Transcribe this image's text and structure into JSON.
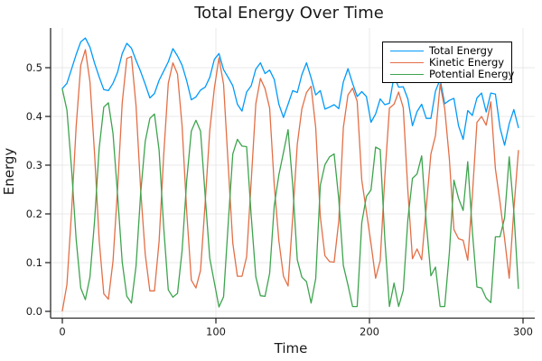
{
  "chart_data": {
    "type": "line",
    "title": "Total Energy Over Time",
    "xlabel": "Time",
    "ylabel": "Energy",
    "grid": true,
    "legend_position": "top-right",
    "axis_color": "#2b2b2b",
    "grid_color": "#e9e9e9",
    "xlim": [
      -7.65,
      307.65
    ],
    "ylim": [
      -0.0139,
      0.5815
    ],
    "x_ticks": {
      "values": [
        0,
        100,
        200,
        300
      ],
      "labels": [
        "0",
        "100",
        "200",
        "300"
      ]
    },
    "y_ticks": {
      "values": [
        0.0,
        0.1,
        0.2,
        0.3,
        0.4,
        0.5
      ],
      "labels": [
        "0.0",
        "0.1",
        "0.2",
        "0.3",
        "0.4",
        "0.5"
      ]
    },
    "x": [
      0,
      3,
      6,
      9,
      12,
      15,
      18,
      21,
      24,
      27,
      30,
      33,
      36,
      39,
      42,
      45,
      48,
      51,
      54,
      57,
      60,
      63,
      66,
      69,
      72,
      75,
      78,
      81,
      84,
      87,
      90,
      93,
      96,
      99,
      102,
      105,
      108,
      111,
      114,
      117,
      120,
      123,
      126,
      129,
      132,
      135,
      138,
      141,
      144,
      147,
      150,
      153,
      156,
      159,
      162,
      165,
      168,
      171,
      174,
      177,
      180,
      183,
      186,
      189,
      192,
      195,
      198,
      201,
      204,
      207,
      210,
      213,
      216,
      219,
      222,
      225,
      228,
      231,
      234,
      237,
      240,
      243,
      246,
      249,
      252,
      255,
      258,
      261,
      264,
      267,
      270,
      273,
      276,
      279,
      282,
      285,
      288,
      291,
      294,
      297
    ],
    "series": [
      {
        "name": "Total Energy",
        "color": "#009AFA",
        "values": [
          0.457,
          0.468,
          0.497,
          0.527,
          0.553,
          0.561,
          0.542,
          0.509,
          0.481,
          0.455,
          0.453,
          0.468,
          0.491,
          0.529,
          0.55,
          0.54,
          0.515,
          0.492,
          0.466,
          0.438,
          0.447,
          0.474,
          0.493,
          0.512,
          0.539,
          0.524,
          0.505,
          0.473,
          0.434,
          0.44,
          0.454,
          0.46,
          0.48,
          0.517,
          0.529,
          0.496,
          0.48,
          0.463,
          0.425,
          0.411,
          0.45,
          0.463,
          0.497,
          0.51,
          0.488,
          0.495,
          0.476,
          0.425,
          0.398,
          0.425,
          0.453,
          0.449,
          0.486,
          0.51,
          0.479,
          0.444,
          0.453,
          0.415,
          0.419,
          0.424,
          0.416,
          0.471,
          0.498,
          0.468,
          0.441,
          0.451,
          0.441,
          0.388,
          0.405,
          0.436,
          0.424,
          0.427,
          0.483,
          0.46,
          0.461,
          0.436,
          0.381,
          0.41,
          0.425,
          0.396,
          0.396,
          0.452,
          0.476,
          0.426,
          0.433,
          0.437,
          0.381,
          0.353,
          0.412,
          0.402,
          0.438,
          0.448,
          0.409,
          0.448,
          0.446,
          0.377,
          0.341,
          0.385,
          0.414,
          0.377
        ]
      },
      {
        "name": "Kinetic Energy",
        "color": "#E36F47",
        "values": [
          0.001,
          0.055,
          0.204,
          0.379,
          0.505,
          0.537,
          0.471,
          0.323,
          0.146,
          0.036,
          0.025,
          0.103,
          0.253,
          0.428,
          0.519,
          0.523,
          0.422,
          0.25,
          0.117,
          0.042,
          0.042,
          0.143,
          0.32,
          0.468,
          0.51,
          0.487,
          0.38,
          0.204,
          0.064,
          0.048,
          0.084,
          0.222,
          0.371,
          0.458,
          0.52,
          0.466,
          0.301,
          0.14,
          0.072,
          0.072,
          0.112,
          0.267,
          0.426,
          0.478,
          0.457,
          0.417,
          0.259,
          0.145,
          0.072,
          0.052,
          0.193,
          0.343,
          0.416,
          0.449,
          0.462,
          0.377,
          0.194,
          0.114,
          0.102,
          0.101,
          0.185,
          0.377,
          0.444,
          0.458,
          0.431,
          0.269,
          0.205,
          0.139,
          0.068,
          0.104,
          0.276,
          0.417,
          0.425,
          0.45,
          0.418,
          0.248,
          0.108,
          0.128,
          0.106,
          0.214,
          0.323,
          0.361,
          0.466,
          0.416,
          0.314,
          0.168,
          0.149,
          0.146,
          0.105,
          0.238,
          0.388,
          0.4,
          0.382,
          0.43,
          0.293,
          0.224,
          0.149,
          0.068,
          0.208,
          0.33
        ]
      },
      {
        "name": "Potential Energy",
        "color": "#3EA44E",
        "values": [
          0.456,
          0.413,
          0.293,
          0.148,
          0.048,
          0.024,
          0.071,
          0.186,
          0.335,
          0.419,
          0.428,
          0.365,
          0.238,
          0.101,
          0.031,
          0.017,
          0.093,
          0.242,
          0.349,
          0.396,
          0.405,
          0.331,
          0.173,
          0.044,
          0.029,
          0.037,
          0.125,
          0.269,
          0.37,
          0.392,
          0.37,
          0.238,
          0.109,
          0.059,
          0.009,
          0.03,
          0.179,
          0.323,
          0.353,
          0.339,
          0.338,
          0.196,
          0.071,
          0.032,
          0.031,
          0.078,
          0.217,
          0.28,
          0.326,
          0.373,
          0.26,
          0.106,
          0.07,
          0.061,
          0.017,
          0.067,
          0.259,
          0.301,
          0.317,
          0.323,
          0.231,
          0.094,
          0.054,
          0.01,
          0.01,
          0.182,
          0.236,
          0.249,
          0.337,
          0.332,
          0.148,
          0.01,
          0.058,
          0.01,
          0.043,
          0.188,
          0.273,
          0.282,
          0.319,
          0.182,
          0.073,
          0.091,
          0.01,
          0.01,
          0.119,
          0.269,
          0.232,
          0.207,
          0.307,
          0.164,
          0.05,
          0.048,
          0.027,
          0.018,
          0.153,
          0.153,
          0.192,
          0.317,
          0.206,
          0.047
        ]
      }
    ]
  }
}
